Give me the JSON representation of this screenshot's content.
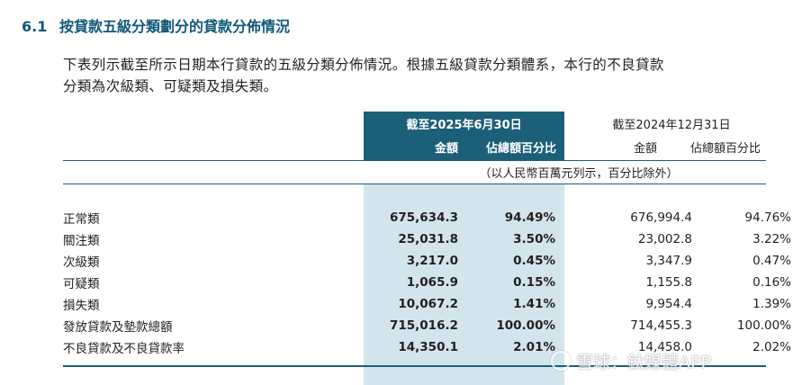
{
  "section": {
    "number": "6.1",
    "title": "按貸款五級分類劃分的貸款分佈情況"
  },
  "intro": {
    "line1": "下表列示截至所示日期本行貸款的五級分類分佈情況。根據五級貸款分類體系，本行的不良貸款",
    "line2": "分類為次級類、可疑類及損失類。"
  },
  "table": {
    "current_period": "截至2025年6月30日",
    "prior_period": "截至2024年12月31日",
    "col_amount": "金額",
    "col_pct": "佔總額百分比",
    "unit_note": "（以人民幣百萬元列示，百分比除外）",
    "rows": [
      {
        "label": "正常類",
        "cur_amount": "675,634.3",
        "cur_pct": "94.49%",
        "prev_amount": "676,994.4",
        "prev_pct": "94.76%"
      },
      {
        "label": "關注類",
        "cur_amount": "25,031.8",
        "cur_pct": "3.50%",
        "prev_amount": "23,002.8",
        "prev_pct": "3.22%"
      },
      {
        "label": "次級類",
        "cur_amount": "3,217.0",
        "cur_pct": "0.45%",
        "prev_amount": "3,347.9",
        "prev_pct": "0.47%"
      },
      {
        "label": "可疑類",
        "cur_amount": "1,065.9",
        "cur_pct": "0.15%",
        "prev_amount": "1,155.8",
        "prev_pct": "0.16%"
      },
      {
        "label": "損失類",
        "cur_amount": "10,067.2",
        "cur_pct": "1.41%",
        "prev_amount": "9,954.4",
        "prev_pct": "1.39%"
      },
      {
        "label": "發放貸款及墊款總額",
        "cur_amount": "715,016.2",
        "cur_pct": "100.00%",
        "prev_amount": "714,455.3",
        "prev_pct": "100.00%"
      },
      {
        "label": "不良貸款及不良貸款率",
        "cur_amount": "14,350.1",
        "cur_pct": "2.01%",
        "prev_amount": "14,458.0",
        "prev_pct": "2.02%"
      }
    ]
  },
  "watermark": {
    "text": "雪球：鈦媒體APP"
  },
  "colors": {
    "heading": "#10587a",
    "band_dark": "#1c5f79",
    "band_light": "#d3e5ec"
  }
}
